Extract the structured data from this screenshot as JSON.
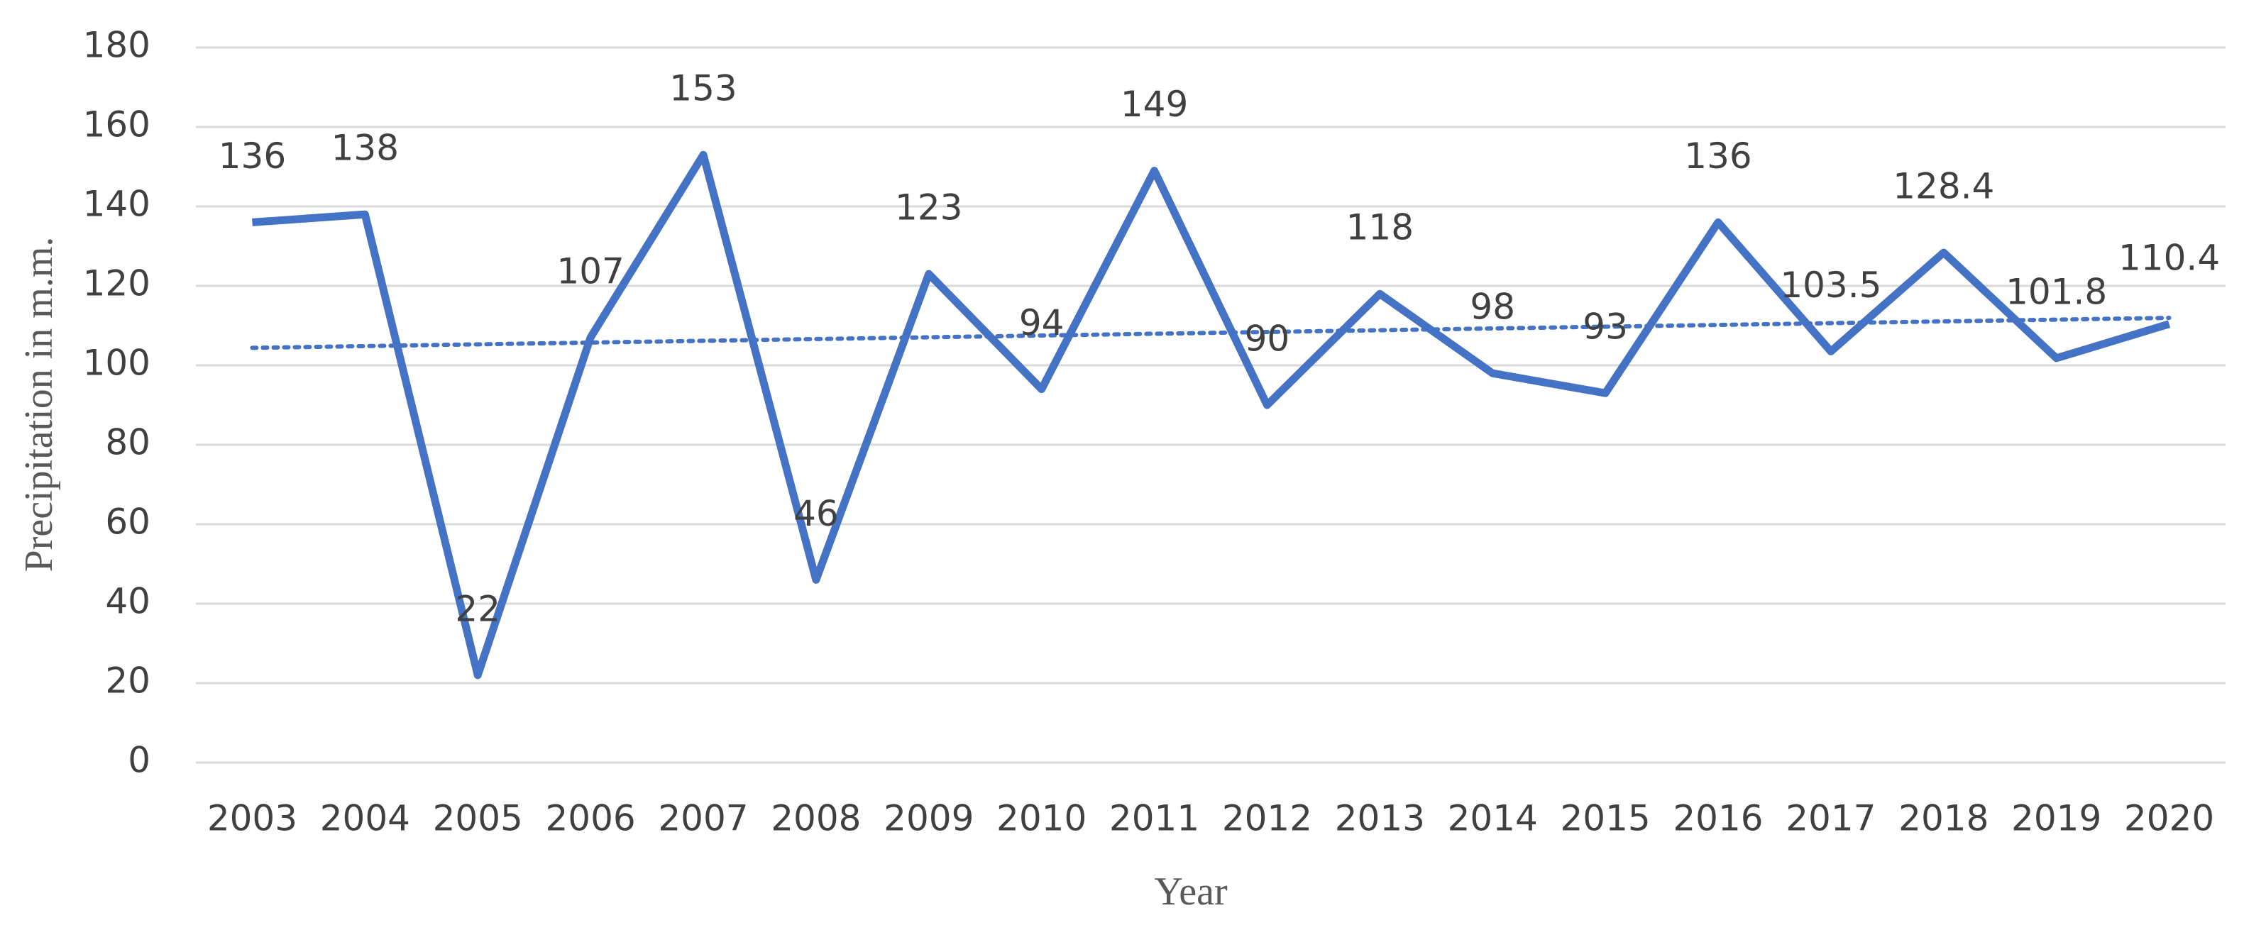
{
  "chart_data": {
    "type": "line",
    "x_label": "Year",
    "y_label": "Precipitation in m.m.",
    "categories": [
      "2003",
      "2004",
      "2005",
      "2006",
      "2007",
      "2008",
      "2009",
      "2010",
      "2011",
      "2012",
      "2013",
      "2014",
      "2015",
      "2016",
      "2017",
      "2018",
      "2019",
      "2020"
    ],
    "series": [
      {
        "color": "#4472c4",
        "values": [
          136,
          138,
          22,
          107,
          153,
          46,
          123,
          94,
          149,
          90,
          118,
          98,
          93,
          136,
          103.5,
          128.4,
          101.8,
          110.4
        ]
      }
    ],
    "ylim": [
      0,
      180
    ],
    "yticks": [
      0,
      20,
      40,
      60,
      80,
      100,
      120,
      140,
      160,
      180
    ],
    "grid": true,
    "trendline": "linear",
    "data_labels": true
  }
}
